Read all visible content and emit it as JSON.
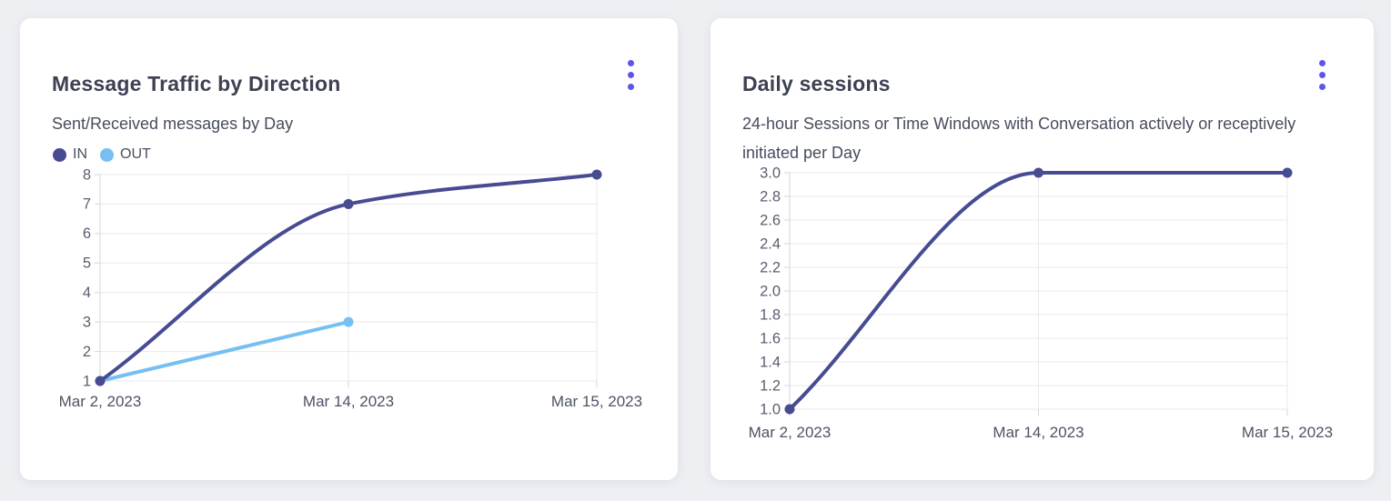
{
  "colors": {
    "accent": "#5b55ee",
    "card_background": "#ffffff",
    "page_background": "#edeff3",
    "series_in": "#474b92",
    "series_out": "#76bff2"
  },
  "cards": [
    {
      "title": "Message Traffic by Direction",
      "subtitle": "Sent/Received messages by Day",
      "menu_icon": "kebab-menu"
    },
    {
      "title": "Daily sessions",
      "subtitle": "24-hour Sessions or Time Windows with Conversation actively or receptively initiated per Day",
      "menu_icon": "kebab-menu"
    }
  ],
  "chart_data": [
    {
      "type": "line",
      "title": "Message Traffic by Direction",
      "subtitle": "Sent/Received messages by Day",
      "categories": [
        "Mar 2, 2023",
        "Mar 14, 2023",
        "Mar 15, 2023"
      ],
      "series": [
        {
          "name": "IN",
          "color": "#474b92",
          "values": [
            1,
            7,
            8
          ]
        },
        {
          "name": "OUT",
          "color": "#76bff2",
          "values": [
            1,
            3,
            null
          ]
        }
      ],
      "ylim": [
        1,
        8
      ],
      "ytick_values": [
        1,
        2,
        3,
        4,
        5,
        6,
        7,
        8
      ],
      "ytick_labels": [
        "1",
        "2",
        "3",
        "4",
        "5",
        "6",
        "7",
        "8"
      ],
      "grid": true,
      "smooth": true,
      "legend_position": "top-left"
    },
    {
      "type": "line",
      "title": "Daily sessions",
      "subtitle": "24-hour Sessions or Time Windows with Conversation actively or receptively initiated per Day",
      "categories": [
        "Mar 2, 2023",
        "Mar 14, 2023",
        "Mar 15, 2023"
      ],
      "series": [
        {
          "color": "#474b92",
          "values": [
            1.0,
            3.0,
            3.0
          ]
        }
      ],
      "ylim": [
        1.0,
        3.0
      ],
      "ytick_values": [
        1.0,
        1.2,
        1.4,
        1.6,
        1.8,
        2.0,
        2.2,
        2.4,
        2.6,
        2.8,
        3.0
      ],
      "ytick_labels": [
        "1.0",
        "1.2",
        "1.4",
        "1.6",
        "1.8",
        "2.0",
        "2.2",
        "2.4",
        "2.6",
        "2.8",
        "3.0"
      ],
      "grid": true,
      "smooth": true,
      "legend_position": "none"
    }
  ]
}
